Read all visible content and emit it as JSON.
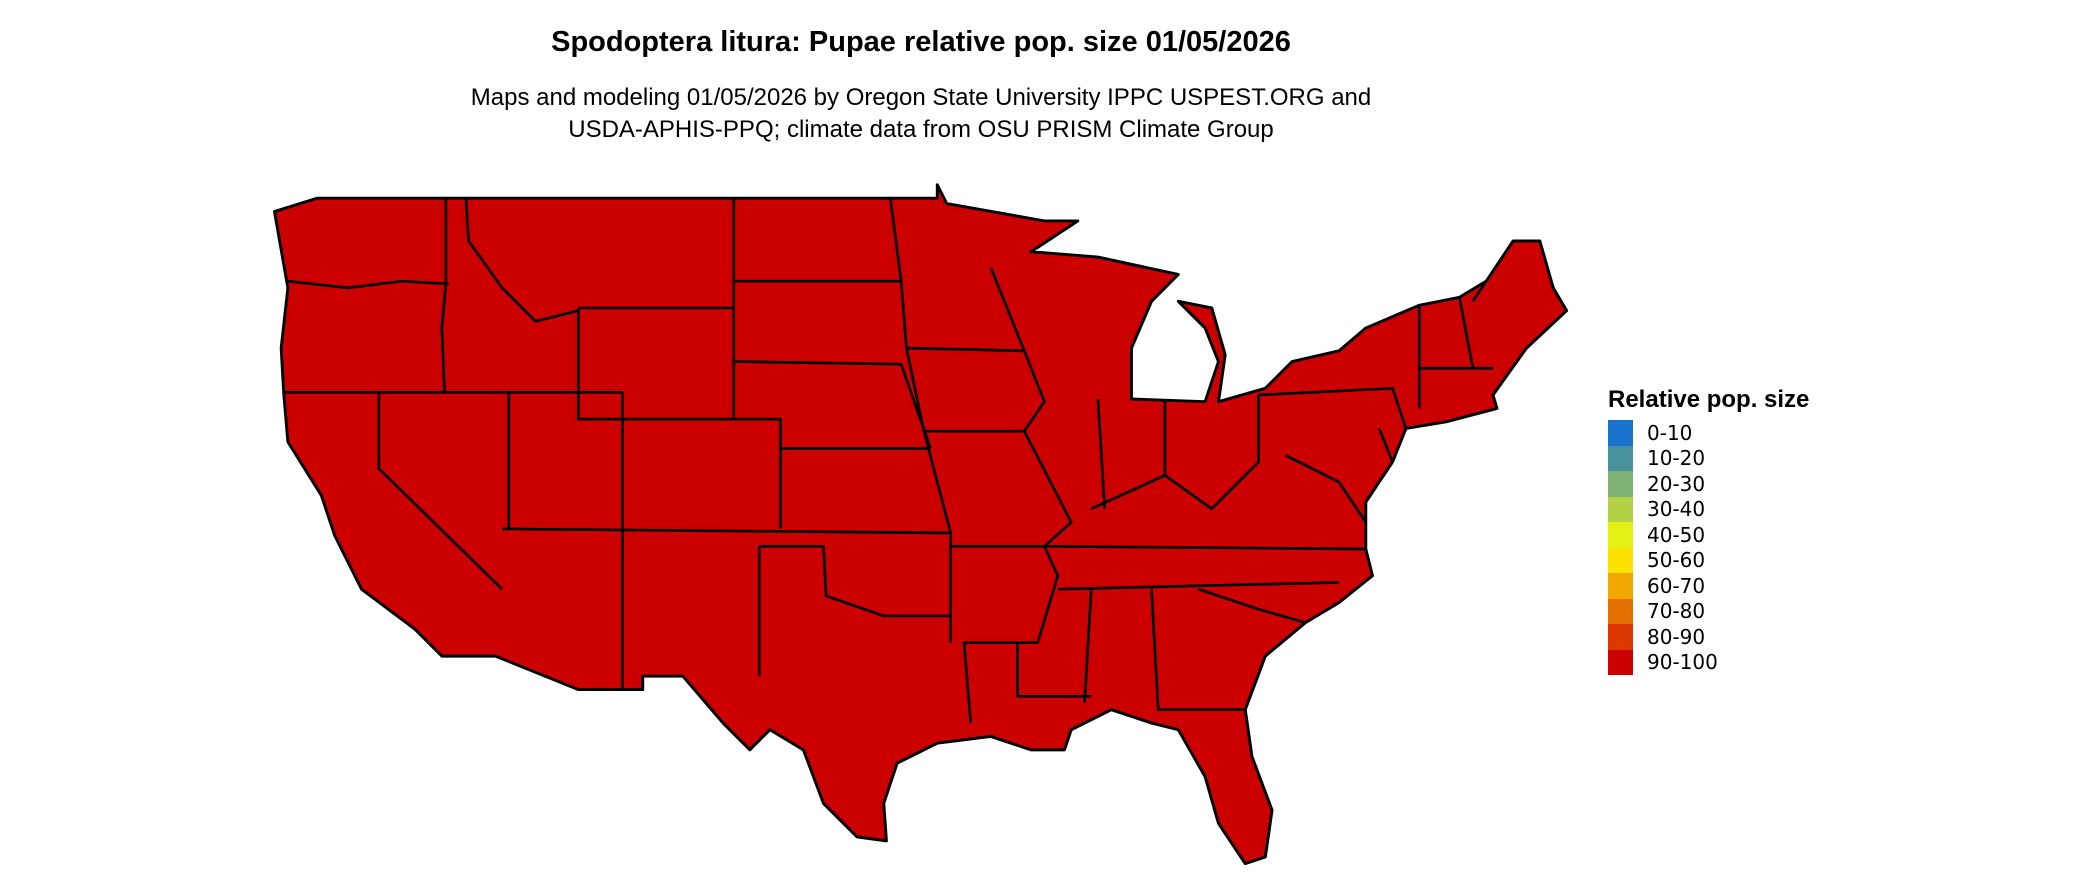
{
  "title": "Spodoptera litura: Pupae relative pop. size 01/05/2026",
  "subtitle_lines": [
    "Maps and modeling 01/05/2026 by Oregon State University IPPC USPEST.ORG and",
    "USDA-APHIS-PPQ; climate data from OSU PRISM Climate Group"
  ],
  "map": {
    "region": "Contiguous United States",
    "fill_category": "90-100",
    "fill_color": "#cc0000",
    "border_color": "#000000"
  },
  "legend": {
    "title": "Relative pop. size",
    "items": [
      {
        "label": "0-10",
        "color": "#1874cd"
      },
      {
        "label": "10-20",
        "color": "#4a919e"
      },
      {
        "label": "20-30",
        "color": "#7eb174"
      },
      {
        "label": "30-40",
        "color": "#b3d145"
      },
      {
        "label": "40-50",
        "color": "#e5f015"
      },
      {
        "label": "50-60",
        "color": "#fae100"
      },
      {
        "label": "60-70",
        "color": "#f0a800"
      },
      {
        "label": "70-80",
        "color": "#e47000"
      },
      {
        "label": "80-90",
        "color": "#dc3800"
      },
      {
        "label": "90-100",
        "color": "#cc0000"
      }
    ]
  }
}
